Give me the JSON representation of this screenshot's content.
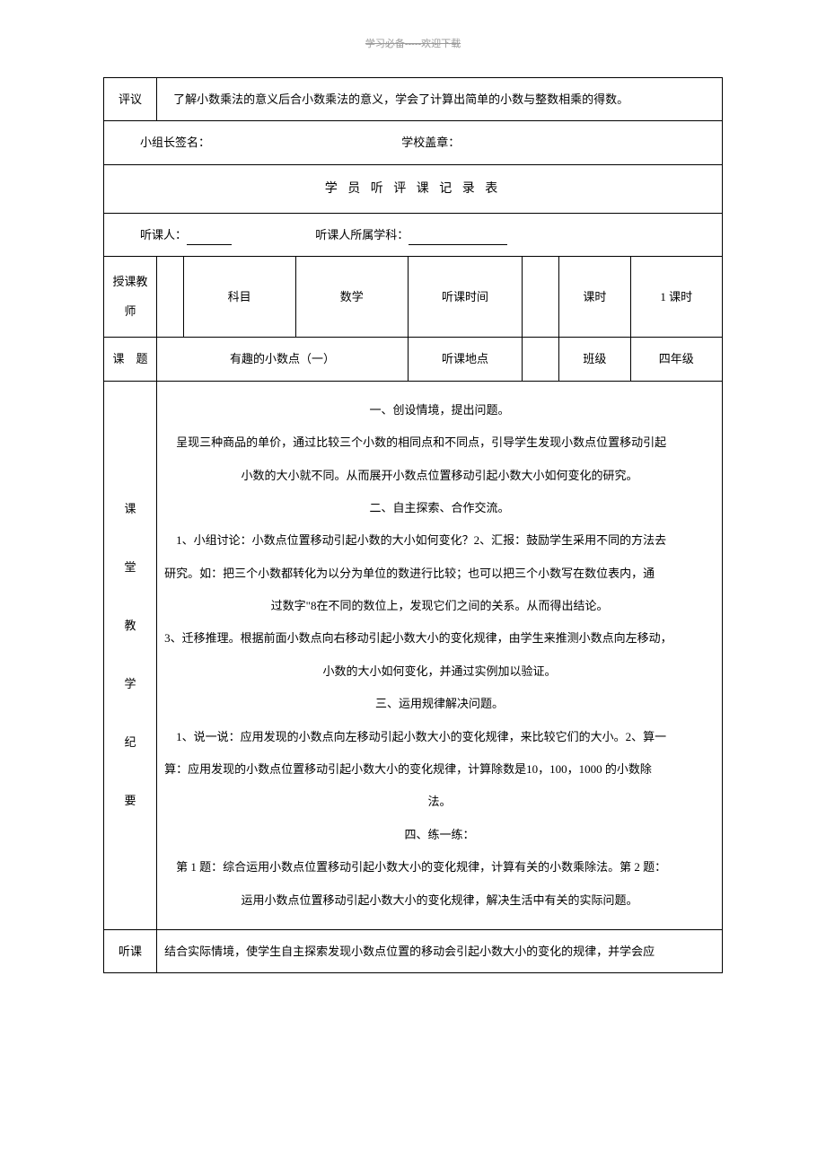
{
  "header_note": "学习必备-----欢迎下载",
  "comment": {
    "label": "评议",
    "text": "了解小数乘法的意义后合小数乘法的意义，学会了计算出简单的小数与整数相乘的得数。"
  },
  "signature": {
    "group_leader": "小组长签名：",
    "school_stamp": "学校盖章："
  },
  "form_title": "学 员 听 评 课 记 录 表",
  "listener": {
    "person_label": "听课人：",
    "subject_label": "听课人所属学科："
  },
  "info_row1": {
    "teacher_label": "授课教师",
    "subject_label": "科目",
    "subject_value": "数学",
    "time_label": "听课时间",
    "period_label": "课时",
    "period_value": "1 课时"
  },
  "info_row2": {
    "topic_label": "课　题",
    "topic_value": "有趣的小数点（一）",
    "location_label": "听课地点",
    "class_label": "班级",
    "class_value": "四年级"
  },
  "teaching": {
    "label_lines": [
      "课",
      "堂",
      "教",
      "学",
      "纪",
      "要"
    ],
    "section1_title": "一、创设情境，提出问题。",
    "section1_body": "呈现三种商品的单价，通过比较三个小数的相同点和不同点，引导学生发现小数点位置移动引起",
    "section1_body2": "小数的大小就不同。从而展开小数点位置移动引起小数大小如何变化的研究。",
    "section2_title": "二、自主探索、合作交流。",
    "section2_line1": "1、小组讨论：小数点位置移动引起小数的大小如何变化？2、汇报：鼓励学生采用不同的方法去",
    "section2_line2": "研究。如：把三个小数都转化为以分为单位的数进行比较；也可以把三个小数写在数位表内，通",
    "section2_line3": "过数字\"8在不同的数位上，发现它们之间的关系。从而得出结论。",
    "section2_line4": "3、迁移推理。根据前面小数点向右移动引起小数大小的变化规律，由学生来推测小数点向左移动，",
    "section2_line5": "小数的大小如何变化，并通过实例加以验证。",
    "section3_title": "三、运用规律解决问题。",
    "section3_line1": "1、说一说：应用发现的小数点向左移动引起小数大小的变化规律，来比较它们的大小。2、算一",
    "section3_line2": "算：应用发现的小数点位置移动引起小数大小的变化规律，计算除数是10，100，1000 的小数除",
    "section3_line3": "法。",
    "section4_title": "四、练一练：",
    "section4_line1": "第 1 题：综合运用小数点位置移动引起小数大小的变化规律，计算有关的小数乘除法。第 2 题：",
    "section4_line2": "运用小数点位置移动引起小数大小的变化规律，解决生活中有关的实际问题。"
  },
  "listen_course": {
    "label": "听课",
    "text": "结合实际情境，使学生自主探索发现小数点位置的移动会引起小数大小的变化的规律，并学会应"
  }
}
